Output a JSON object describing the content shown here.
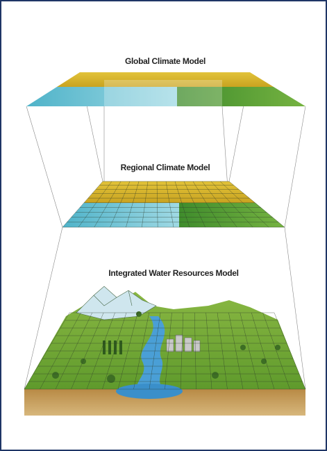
{
  "layers": [
    {
      "label": "Global Climate Model"
    },
    {
      "label": "Regional Climate Model"
    },
    {
      "label": "Integrated Water Resources Model"
    }
  ]
}
